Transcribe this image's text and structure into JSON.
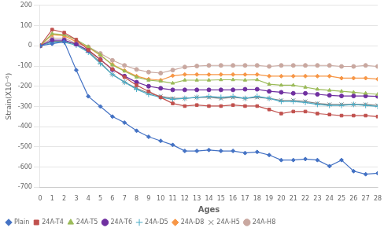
{
  "chart_data": {
    "type": "line",
    "xlabel": "Ages",
    "ylabel": "Strain(X10⁻⁶)",
    "x": [
      0,
      1,
      2,
      3,
      4,
      5,
      6,
      7,
      8,
      9,
      10,
      11,
      12,
      13,
      14,
      15,
      16,
      17,
      18,
      19,
      20,
      21,
      22,
      23,
      24,
      25,
      26,
      27,
      28
    ],
    "series": [
      {
        "name": "Plain",
        "color": "#4472C4",
        "marker": "diamond",
        "values": [
          0,
          10,
          20,
          -120,
          -250,
          -300,
          -350,
          -380,
          -420,
          -450,
          -470,
          -490,
          -520,
          -520,
          -515,
          -520,
          -520,
          -530,
          -525,
          -540,
          -565,
          -565,
          -560,
          -565,
          -595,
          -565,
          -620,
          -635,
          -630
        ]
      },
      {
        "name": "24A-T4",
        "color": "#C0504D",
        "marker": "square",
        "values": [
          0,
          80,
          65,
          30,
          -20,
          -70,
          -115,
          -155,
          -195,
          -225,
          -255,
          -285,
          -298,
          -293,
          -298,
          -298,
          -293,
          -298,
          -298,
          -315,
          -335,
          -325,
          -325,
          -335,
          -340,
          -345,
          -345,
          -345,
          -350
        ]
      },
      {
        "name": "24A-T5",
        "color": "#9BBB59",
        "marker": "triangle",
        "values": [
          0,
          60,
          55,
          30,
          -5,
          -45,
          -95,
          -125,
          -155,
          -170,
          -175,
          -185,
          -170,
          -170,
          -170,
          -168,
          -168,
          -170,
          -168,
          -190,
          -195,
          -195,
          -205,
          -215,
          -220,
          -225,
          -230,
          -235,
          -240
        ]
      },
      {
        "name": "24A-T6",
        "color": "#7030A0",
        "marker": "circle",
        "values": [
          0,
          28,
          28,
          8,
          -22,
          -68,
          -118,
          -150,
          -180,
          -200,
          -210,
          -218,
          -218,
          -218,
          -218,
          -218,
          -218,
          -215,
          -215,
          -225,
          -230,
          -235,
          -235,
          -240,
          -245,
          -248,
          -248,
          -248,
          -250
        ]
      },
      {
        "name": "24A-D5",
        "color": "#4BACC6",
        "marker": "plus",
        "values": [
          0,
          18,
          18,
          3,
          -32,
          -88,
          -142,
          -180,
          -215,
          -240,
          -255,
          -265,
          -260,
          -255,
          -250,
          -255,
          -250,
          -260,
          -250,
          -260,
          -275,
          -275,
          -280,
          -290,
          -295,
          -295,
          -290,
          -295,
          -300
        ]
      },
      {
        "name": "24A-D8",
        "color": "#F79646",
        "marker": "diamond",
        "values": [
          0,
          55,
          50,
          20,
          -8,
          -48,
          -92,
          -122,
          -150,
          -165,
          -170,
          -148,
          -142,
          -142,
          -142,
          -142,
          -142,
          -142,
          -142,
          -150,
          -150,
          -150,
          -150,
          -150,
          -150,
          -160,
          -160,
          -160,
          -165
        ]
      },
      {
        "name": "24A-H5",
        "color": "#808080",
        "marker": "x",
        "values": [
          0,
          22,
          22,
          8,
          -27,
          -83,
          -142,
          -180,
          -210,
          -235,
          -250,
          -260,
          -260,
          -255,
          -255,
          -260,
          -255,
          -260,
          -255,
          -260,
          -270,
          -270,
          -275,
          -285,
          -290,
          -290,
          -290,
          -290,
          -295
        ]
      },
      {
        "name": "24A-H8",
        "color": "#C9A8A0",
        "marker": "circle",
        "values": [
          0,
          38,
          38,
          12,
          -5,
          -38,
          -72,
          -97,
          -117,
          -130,
          -135,
          -120,
          -105,
          -100,
          -97,
          -97,
          -97,
          -97,
          -97,
          -102,
          -97,
          -97,
          -97,
          -97,
          -97,
          -102,
          -102,
          -97,
          -102
        ]
      }
    ],
    "xlim": [
      0,
      28
    ],
    "xticks": [
      0,
      1,
      2,
      3,
      4,
      5,
      6,
      7,
      8,
      9,
      10,
      11,
      12,
      13,
      14,
      15,
      16,
      17,
      18,
      19,
      20,
      21,
      22,
      23,
      24,
      25,
      26,
      27,
      28
    ],
    "ylim": [
      -700,
      200
    ],
    "yticks": [
      -700,
      -600,
      -500,
      -400,
      -300,
      -200,
      -100,
      0,
      100,
      200
    ],
    "grid": "y",
    "legend": "lower left"
  }
}
